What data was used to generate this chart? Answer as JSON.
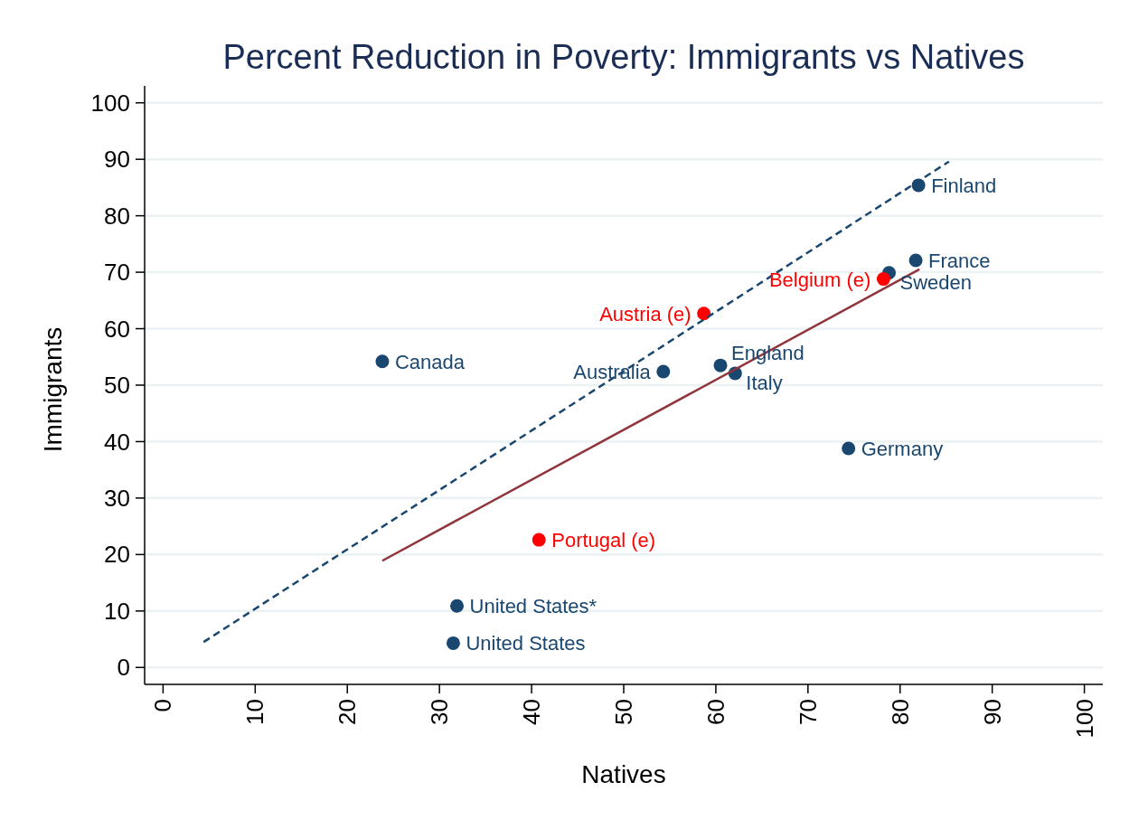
{
  "chart_data": {
    "type": "scatter",
    "title": "Percent Reduction in Poverty: Immigrants vs Natives",
    "xlabel": "Natives",
    "ylabel": "Immigrants",
    "xlim": [
      -2,
      102
    ],
    "ylim": [
      -3,
      103
    ],
    "xticks": [
      0,
      10,
      20,
      30,
      40,
      50,
      60,
      70,
      80,
      90,
      100
    ],
    "yticks": [
      0,
      10,
      20,
      30,
      40,
      50,
      60,
      70,
      80,
      90,
      100
    ],
    "grid": "y",
    "marker": "circle",
    "series": [
      {
        "color": "#1a476f",
        "x": [
          23.8,
          82.0,
          81.7,
          78.8,
          54.3,
          60.5,
          62.1,
          74.4,
          31.9,
          31.5
        ],
        "values": [
          54.2,
          85.4,
          72.1,
          69.9,
          52.4,
          53.5,
          52.1,
          38.8,
          10.9,
          4.3
        ]
      },
      {
        "color": "#ff0000",
        "x": [
          78.2,
          58.7,
          40.8
        ],
        "values": [
          68.8,
          62.7,
          22.6
        ]
      },
      {
        "type": "line",
        "color": "#1a476f",
        "line_style": "dashed",
        "marker": "none",
        "x": [
          4.4,
          85.3
        ],
        "values": [
          4.5,
          89.6
        ]
      },
      {
        "type": "line",
        "color": "#90353b",
        "line_style": "solid",
        "marker": "none",
        "x": [
          23.8,
          82.1
        ],
        "values": [
          18.9,
          70.5
        ]
      }
    ],
    "annotations": [
      {
        "text": "Canada",
        "x": 23.8,
        "y": 54.2
      },
      {
        "text": "Finland",
        "x": 82.0,
        "y": 85.4
      },
      {
        "text": "France",
        "x": 81.7,
        "y": 72.1
      },
      {
        "text": "Sweden",
        "x": 78.8,
        "y": 69.9
      },
      {
        "text": "Australia",
        "x": 54.3,
        "y": 52.4
      },
      {
        "text": "England",
        "x": 60.5,
        "y": 53.5
      },
      {
        "text": "Italy",
        "x": 62.1,
        "y": 52.1
      },
      {
        "text": "Germany",
        "x": 74.4,
        "y": 38.8
      },
      {
        "text": "United States*",
        "x": 31.9,
        "y": 10.9
      },
      {
        "text": "United States",
        "x": 31.5,
        "y": 4.3
      },
      {
        "text": "Belgium (e)",
        "x": 78.2,
        "y": 68.8
      },
      {
        "text": "Austria (e)",
        "x": 58.7,
        "y": 62.7
      },
      {
        "text": "Portugal (e)",
        "x": 40.8,
        "y": 22.6
      }
    ]
  }
}
